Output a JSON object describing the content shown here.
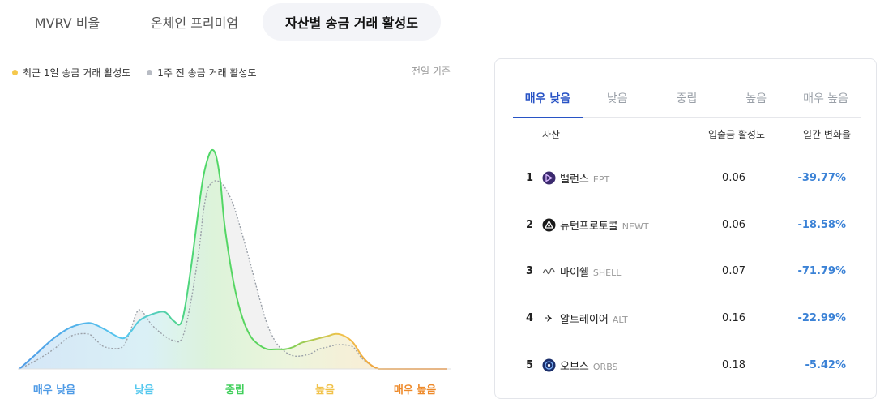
{
  "top_tabs": [
    {
      "label": "MVRV 비율"
    },
    {
      "label": "온체인 프리미엄"
    },
    {
      "label": "자산별 송금 거래 활성도"
    }
  ],
  "legend": {
    "current": {
      "label": "최근 1일 송금 거래 활성도",
      "color": "#f5c84c"
    },
    "previous": {
      "label": "1주 전 송금 거래 활성도",
      "color": "#b8bcc4"
    }
  },
  "reference_note": "전일 기준",
  "chart_data": {
    "type": "area",
    "x": [
      0.0,
      0.04,
      0.08,
      0.12,
      0.16,
      0.18,
      0.2,
      0.24,
      0.26,
      0.28,
      0.31,
      0.34,
      0.36,
      0.38,
      0.4,
      0.42,
      0.43,
      0.44,
      0.45,
      0.46,
      0.47,
      0.48,
      0.5,
      0.52,
      0.54,
      0.56,
      0.58,
      0.6,
      0.62,
      0.64,
      0.66,
      0.68,
      0.7,
      0.72,
      0.74,
      0.76,
      0.78,
      0.8,
      0.82,
      0.84,
      0.86,
      0.88,
      0.9,
      0.95,
      1.0
    ],
    "series": [
      {
        "name": "최근 1일 송금 거래 활성도",
        "values": [
          0.0,
          0.07,
          0.14,
          0.19,
          0.21,
          0.2,
          0.18,
          0.14,
          0.17,
          0.22,
          0.25,
          0.26,
          0.22,
          0.22,
          0.45,
          0.75,
          0.88,
          0.96,
          1.0,
          0.97,
          0.85,
          0.65,
          0.4,
          0.24,
          0.15,
          0.11,
          0.09,
          0.09,
          0.09,
          0.1,
          0.12,
          0.13,
          0.14,
          0.15,
          0.16,
          0.15,
          0.12,
          0.06,
          0.02,
          0.0,
          0.0,
          0.0,
          0.0,
          0.0,
          0.0
        ]
      },
      {
        "name": "1주 전 송금 거래 활성도",
        "values": [
          0.0,
          0.04,
          0.09,
          0.15,
          0.16,
          0.13,
          0.1,
          0.1,
          0.18,
          0.27,
          0.2,
          0.15,
          0.13,
          0.14,
          0.3,
          0.55,
          0.72,
          0.82,
          0.85,
          0.86,
          0.85,
          0.83,
          0.75,
          0.62,
          0.48,
          0.33,
          0.2,
          0.12,
          0.08,
          0.06,
          0.06,
          0.07,
          0.09,
          0.1,
          0.11,
          0.11,
          0.1,
          0.05,
          0.02,
          0.0,
          0.0,
          0.0,
          0.0,
          0.0,
          0.0
        ]
      }
    ],
    "x_categories": [
      {
        "label": "매우 낮음",
        "color": "#4f9be6"
      },
      {
        "label": "낮음",
        "color": "#56c8ee"
      },
      {
        "label": "중립",
        "color": "#3fcf5a"
      },
      {
        "label": "높음",
        "color": "#f1c24a"
      },
      {
        "label": "매우 높음",
        "color": "#ee8a2a"
      }
    ],
    "ylim": [
      0,
      1
    ]
  },
  "panel": {
    "tabs": [
      {
        "label": "매우 낮음"
      },
      {
        "label": "낮음"
      },
      {
        "label": "중립"
      },
      {
        "label": "높음"
      },
      {
        "label": "매우 높음"
      }
    ],
    "columns": {
      "asset": "자산",
      "activity": "입출금 활성도",
      "change": "일간 변화율"
    },
    "rows": [
      {
        "rank": "1",
        "name": "밸런스",
        "ticker": "EPT",
        "activity": "0.06",
        "change": "-39.77%",
        "icon": "ept-coin-icon"
      },
      {
        "rank": "2",
        "name": "뉴턴프로토콜",
        "ticker": "NEWT",
        "activity": "0.06",
        "change": "-18.58%",
        "icon": "newt-coin-icon"
      },
      {
        "rank": "3",
        "name": "마이쉘",
        "ticker": "SHELL",
        "activity": "0.07",
        "change": "-71.79%",
        "icon": "shell-coin-icon"
      },
      {
        "rank": "4",
        "name": "알트레이어",
        "ticker": "ALT",
        "activity": "0.16",
        "change": "-22.99%",
        "icon": "alt-coin-icon"
      },
      {
        "rank": "5",
        "name": "오브스",
        "ticker": "ORBS",
        "activity": "0.18",
        "change": "-5.42%",
        "icon": "orbs-coin-icon"
      }
    ]
  }
}
